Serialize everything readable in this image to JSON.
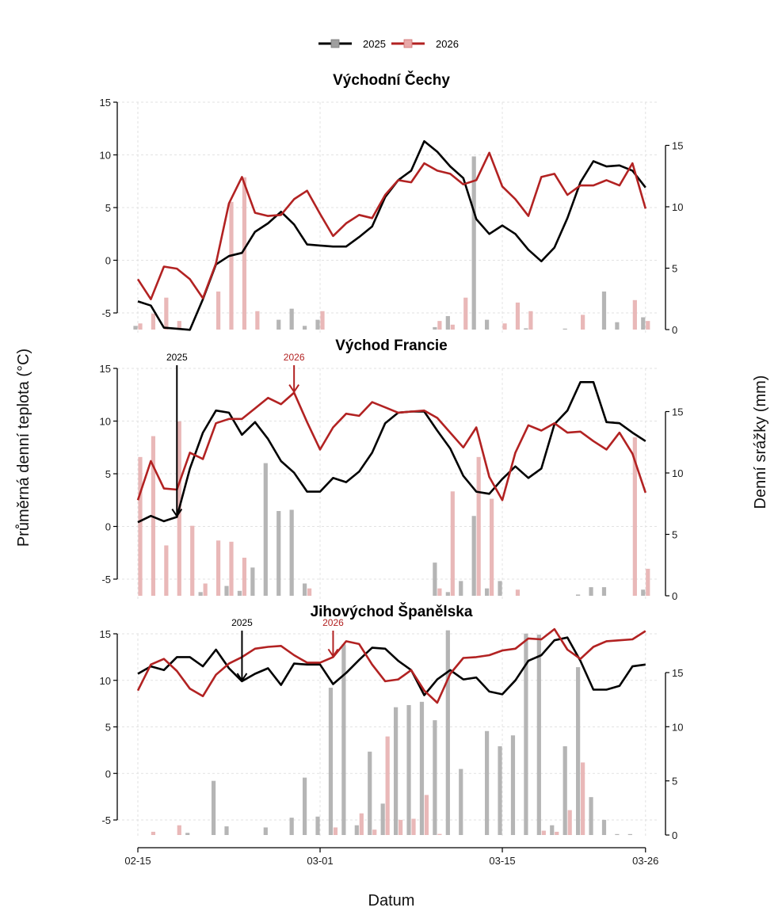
{
  "chart_data": {
    "type": "line+bar",
    "legend": {
      "placement": "top-center",
      "entries": [
        {
          "label": "2025",
          "line_color": "#000000",
          "bar_color": "#b3b3b3"
        },
        {
          "label": "2026",
          "line_color": "#b22222",
          "bar_color": "#e8b4b4"
        }
      ]
    },
    "xlabel": "Datum",
    "ylabel_left": "Průměrná denní teplota (°C)",
    "ylabel_right": "Denní srážky (mm)",
    "x_tick_labels": [
      "02-15",
      "03-01",
      "03-15",
      "03-26"
    ],
    "x_tick_days": [
      0,
      14,
      28,
      39
    ],
    "x_days": 40,
    "ylim_left": [
      -6.5,
      15
    ],
    "left_ticks": [
      "15",
      "10",
      "5",
      "0",
      "-5"
    ],
    "left_tick_values": [
      15,
      10,
      5,
      0,
      -5
    ],
    "right_ticks": [
      "15",
      "10",
      "5",
      "0"
    ],
    "right_tick_values": [
      15,
      10,
      5,
      0
    ],
    "panels": [
      {
        "title": "Východní Čechy",
        "annotations": [],
        "series": [
          {
            "name": "2025",
            "temperature": [
              -3.9,
              -4.3,
              -6.4,
              -6.5,
              -6.6,
              -3.7,
              -0.4,
              0.4,
              0.7,
              2.7,
              3.5,
              4.6,
              3.4,
              1.5,
              1.4,
              1.3,
              1.3,
              2.2,
              3.2,
              6.0,
              7.6,
              8.5,
              11.3,
              10.3,
              8.9,
              7.8,
              3.9,
              2.5,
              3.3,
              2.5,
              1.0,
              -0.1,
              1.2,
              4.0,
              7.4,
              9.4,
              8.9,
              9.0,
              8.5,
              6.9
            ],
            "precipitation": [
              0.3,
              0,
              0,
              0,
              0,
              0,
              0,
              0,
              0,
              0,
              0,
              0.8,
              1.7,
              0.3,
              0.8,
              0,
              0,
              0,
              0,
              0,
              0,
              0,
              0,
              0.2,
              1.1,
              0,
              14.1,
              0.8,
              0,
              0,
              0.1,
              0,
              0,
              0.05,
              0,
              0,
              3.1,
              0.6,
              0,
              1.0
            ]
          },
          {
            "name": "2026",
            "temperature": [
              -1.8,
              -3.7,
              -0.6,
              -0.8,
              -1.8,
              -3.6,
              -0.3,
              5.4,
              7.9,
              4.5,
              4.2,
              4.3,
              5.8,
              6.6,
              4.4,
              2.3,
              3.5,
              4.3,
              4.0,
              6.2,
              7.6,
              7.4,
              9.2,
              8.5,
              8.2,
              7.2,
              7.6,
              10.2,
              7.0,
              5.8,
              4.2,
              7.9,
              8.2,
              6.2,
              7.1,
              7.1,
              7.6,
              7.1,
              9.2,
              4.9
            ],
            "precipitation": [
              0.5,
              1.3,
              2.6,
              0.7,
              0,
              0,
              3.1,
              10.4,
              12.4,
              1.5,
              0,
              0,
              0,
              0,
              1.5,
              0,
              0,
              0,
              0,
              0,
              0,
              0,
              0,
              0.7,
              0.4,
              2.6,
              0,
              0,
              0.5,
              2.2,
              1.5,
              0,
              0,
              0,
              1.2,
              0,
              0,
              0,
              2.4,
              0.7
            ]
          }
        ]
      },
      {
        "title": "Východ Francie",
        "annotations": [
          {
            "label": "2025",
            "series": "2025",
            "day": 3
          },
          {
            "label": "2026",
            "series": "2026",
            "day": 12
          }
        ],
        "series": [
          {
            "name": "2025",
            "temperature": [
              0.4,
              1.0,
              0.5,
              0.9,
              5.5,
              8.9,
              11.0,
              10.8,
              8.7,
              9.9,
              8.3,
              6.2,
              5.1,
              3.3,
              3.3,
              4.6,
              4.2,
              5.2,
              7.0,
              9.8,
              10.8,
              10.9,
              10.9,
              9.1,
              7.4,
              4.8,
              3.3,
              3.1,
              4.5,
              5.7,
              4.6,
              5.5,
              9.7,
              11.0,
              13.7,
              13.7,
              9.9,
              9.8,
              8.9,
              8.1
            ],
            "precipitation": [
              0,
              0,
              0,
              0,
              0,
              0.3,
              0,
              0.8,
              0.4,
              2.3,
              10.8,
              6.9,
              7.0,
              1.0,
              0,
              0,
              0,
              0,
              0,
              0,
              0,
              0,
              0,
              2.7,
              0.3,
              1.2,
              6.5,
              0.6,
              1.2,
              0,
              0,
              0,
              0,
              0,
              0.1,
              0.7,
              0.7,
              0,
              0,
              0.5
            ]
          },
          {
            "name": "2026",
            "temperature": [
              2.5,
              6.2,
              3.6,
              3.5,
              7.0,
              6.4,
              9.8,
              10.2,
              10.2,
              11.2,
              12.2,
              11.6,
              12.7,
              9.9,
              7.3,
              9.4,
              10.7,
              10.5,
              11.8,
              11.3,
              10.8,
              10.9,
              11.0,
              10.3,
              8.9,
              7.5,
              9.4,
              4.7,
              2.5,
              7.0,
              9.6,
              9.1,
              9.8,
              8.9,
              9.0,
              8.1,
              7.3,
              8.9,
              6.9,
              3.2
            ],
            "precipitation": [
              11.3,
              13.0,
              4.1,
              14.2,
              5.7,
              1.0,
              4.5,
              4.4,
              3.1,
              0,
              0,
              0,
              0,
              0.6,
              0,
              0,
              0,
              0,
              0,
              0,
              0,
              0,
              0,
              0.6,
              8.5,
              0,
              11.3,
              7.9,
              0,
              0.5,
              0,
              0,
              0,
              0,
              0,
              0,
              0,
              0,
              12.9,
              2.2
            ]
          }
        ]
      },
      {
        "title": "Jihovýchod Španělska",
        "annotations": [
          {
            "label": "2025",
            "series": "2025",
            "day": 8
          },
          {
            "label": "2026",
            "series": "2026",
            "day": 15
          }
        ],
        "series": [
          {
            "name": "2025",
            "temperature": [
              10.7,
              11.5,
              11.1,
              12.5,
              12.5,
              11.5,
              13.3,
              11.3,
              9.9,
              10.7,
              11.3,
              9.5,
              11.8,
              11.7,
              11.7,
              9.6,
              10.8,
              12.2,
              13.5,
              13.4,
              12.1,
              11.1,
              8.4,
              10.1,
              11.1,
              10.1,
              10.3,
              8.8,
              8.5,
              10.0,
              12.1,
              12.7,
              14.3,
              14.6,
              12.1,
              9.0,
              9.0,
              9.4,
              11.5,
              11.7
            ],
            "precipitation": [
              0,
              0,
              0,
              0,
              0.2,
              0,
              5.0,
              0.8,
              0,
              0,
              0.7,
              0,
              1.6,
              5.3,
              1.7,
              13.6,
              17.6,
              0.9,
              7.7,
              2.9,
              11.8,
              12.0,
              12.3,
              10.6,
              18.9,
              6.1,
              0,
              9.6,
              8.2,
              9.2,
              18.6,
              18.5,
              0.9,
              8.2,
              15.5,
              3.5,
              1.4,
              0.05,
              0.05,
              0
            ]
          },
          {
            "name": "2026",
            "temperature": [
              8.9,
              11.7,
              12.3,
              11.0,
              9.1,
              8.3,
              10.6,
              11.8,
              12.5,
              13.4,
              13.6,
              13.7,
              12.7,
              11.9,
              11.9,
              12.5,
              14.2,
              13.9,
              11.7,
              9.9,
              10.1,
              11.1,
              8.9,
              7.6,
              10.7,
              12.4,
              12.5,
              12.7,
              13.2,
              13.4,
              14.5,
              14.4,
              15.5,
              13.3,
              12.3,
              13.6,
              14.2,
              14.3,
              14.4,
              15.3
            ],
            "precipitation": [
              0,
              0.3,
              0,
              0.9,
              0,
              0,
              0,
              0,
              0,
              0,
              0,
              0,
              0,
              0,
              0,
              0.7,
              0,
              2.0,
              0.5,
              9.1,
              1.4,
              1.5,
              3.7,
              0.1,
              0,
              0,
              0,
              0,
              0,
              0,
              0,
              0.4,
              0.3,
              2.3,
              6.7,
              0,
              0,
              0,
              0,
              0
            ]
          }
        ]
      }
    ]
  },
  "colors": {
    "line_2025": "#000000",
    "line_2026": "#b22222",
    "bar_2025": "#b5b5b5",
    "bar_2026": "#e9b8b8"
  }
}
